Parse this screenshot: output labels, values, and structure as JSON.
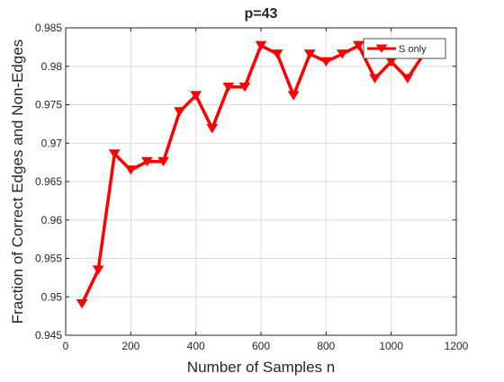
{
  "chart_data": {
    "type": "line",
    "title": "p=43",
    "xlabel": "Number of Samples n",
    "ylabel": "Fraction of Correct Edges and Non-Edges",
    "xlim": [
      0,
      1200
    ],
    "ylim": [
      0.945,
      0.985
    ],
    "xticks": [
      0,
      200,
      400,
      600,
      800,
      1000,
      1200
    ],
    "yticks": [
      0.945,
      0.95,
      0.955,
      0.96,
      0.965,
      0.97,
      0.975,
      0.98,
      0.985
    ],
    "xtick_labels": [
      "0",
      "200",
      "400",
      "600",
      "800",
      "1000",
      "1200"
    ],
    "ytick_labels": [
      "0.945",
      "0.95",
      "0.955",
      "0.96",
      "0.965",
      "0.97",
      "0.975",
      "0.98",
      "0.985"
    ],
    "grid": true,
    "legend_position": "top-right",
    "series": [
      {
        "name": "S only",
        "color": "#ff0000",
        "marker": "triangle-down",
        "x": [
          50,
          100,
          150,
          200,
          250,
          300,
          350,
          400,
          450,
          500,
          550,
          600,
          650,
          700,
          750,
          800,
          850,
          900,
          950,
          1000,
          1050,
          1100
        ],
        "y": [
          0.9491,
          0.9535,
          0.9686,
          0.9665,
          0.9676,
          0.9676,
          0.9741,
          0.9762,
          0.9719,
          0.9773,
          0.9773,
          0.9827,
          0.9816,
          0.9762,
          0.9816,
          0.9806,
          0.9816,
          0.9827,
          0.9784,
          0.9806,
          0.9784,
          0.9816
        ]
      }
    ]
  }
}
